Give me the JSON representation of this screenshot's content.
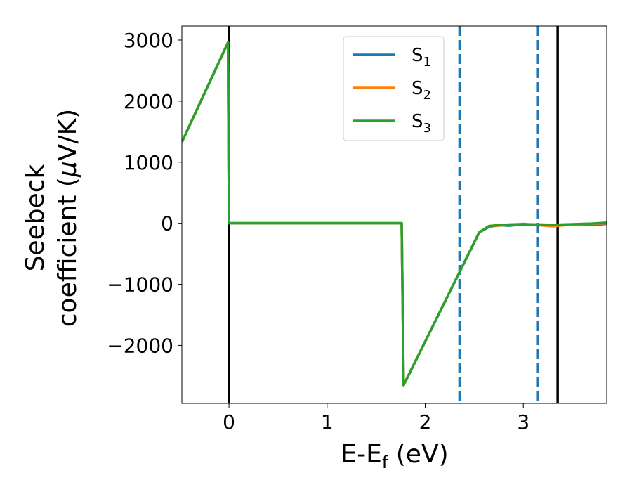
{
  "chart_data": {
    "type": "line",
    "title": "",
    "xlabel": {
      "main": "E-E",
      "sub": "f",
      "rest": " (eV)"
    },
    "ylabel": {
      "line1": "Seebeck",
      "line2": "coefficient  (",
      "mu": "μ",
      "line2_end": "V/K)"
    },
    "xlim": [
      -0.48,
      3.85
    ],
    "ylim": [
      -2950,
      3230
    ],
    "xticks": [
      0,
      1,
      2,
      3
    ],
    "xtick_labels": [
      "0",
      "1",
      "2",
      "3"
    ],
    "yticks": [
      -2000,
      -1000,
      0,
      1000,
      2000,
      3000
    ],
    "ytick_labels": [
      "−2000",
      "−1000",
      "0",
      "1000",
      "2000",
      "3000"
    ],
    "grid": false,
    "legend_position": "top-center",
    "series": [
      {
        "name": "S",
        "subscript": "1",
        "color": "#1f77b4",
        "x": [
          -0.48,
          -0.01,
          0.0,
          1.76,
          1.78,
          2.55,
          2.65,
          2.75,
          2.85,
          3.0,
          3.15,
          3.3,
          3.5,
          3.7,
          3.85
        ],
        "y": [
          1330,
          2960,
          0,
          0,
          -2650,
          -150,
          -60,
          -30,
          -40,
          -20,
          -25,
          -30,
          -25,
          -30,
          -10
        ]
      },
      {
        "name": "S",
        "subscript": "2",
        "color": "#ff7f0e",
        "x": [
          -0.48,
          -0.01,
          0.0,
          1.76,
          1.78,
          2.55,
          2.65,
          2.75,
          2.85,
          3.0,
          3.15,
          3.3,
          3.5,
          3.7,
          3.85
        ],
        "y": [
          1330,
          2960,
          0,
          0,
          -2650,
          -150,
          -50,
          -40,
          -20,
          -10,
          -30,
          -50,
          -20,
          -10,
          0
        ]
      },
      {
        "name": "S",
        "subscript": "3",
        "color": "#2ca02c",
        "x": [
          -0.48,
          -0.01,
          0.0,
          1.76,
          1.78,
          2.55,
          2.65,
          2.75,
          2.85,
          3.0,
          3.15,
          3.3,
          3.5,
          3.7,
          3.85
        ],
        "y": [
          1330,
          2960,
          0,
          0,
          -2650,
          -150,
          -45,
          -30,
          -35,
          -15,
          -20,
          -25,
          -15,
          -5,
          10
        ]
      }
    ],
    "vlines": [
      {
        "x": 0.0,
        "color": "#000000",
        "style": "solid"
      },
      {
        "x": 3.35,
        "color": "#000000",
        "style": "solid"
      },
      {
        "x": 2.35,
        "color": "#1f77b4",
        "style": "dashed"
      },
      {
        "x": 3.15,
        "color": "#1f77b4",
        "style": "dashed"
      }
    ]
  }
}
